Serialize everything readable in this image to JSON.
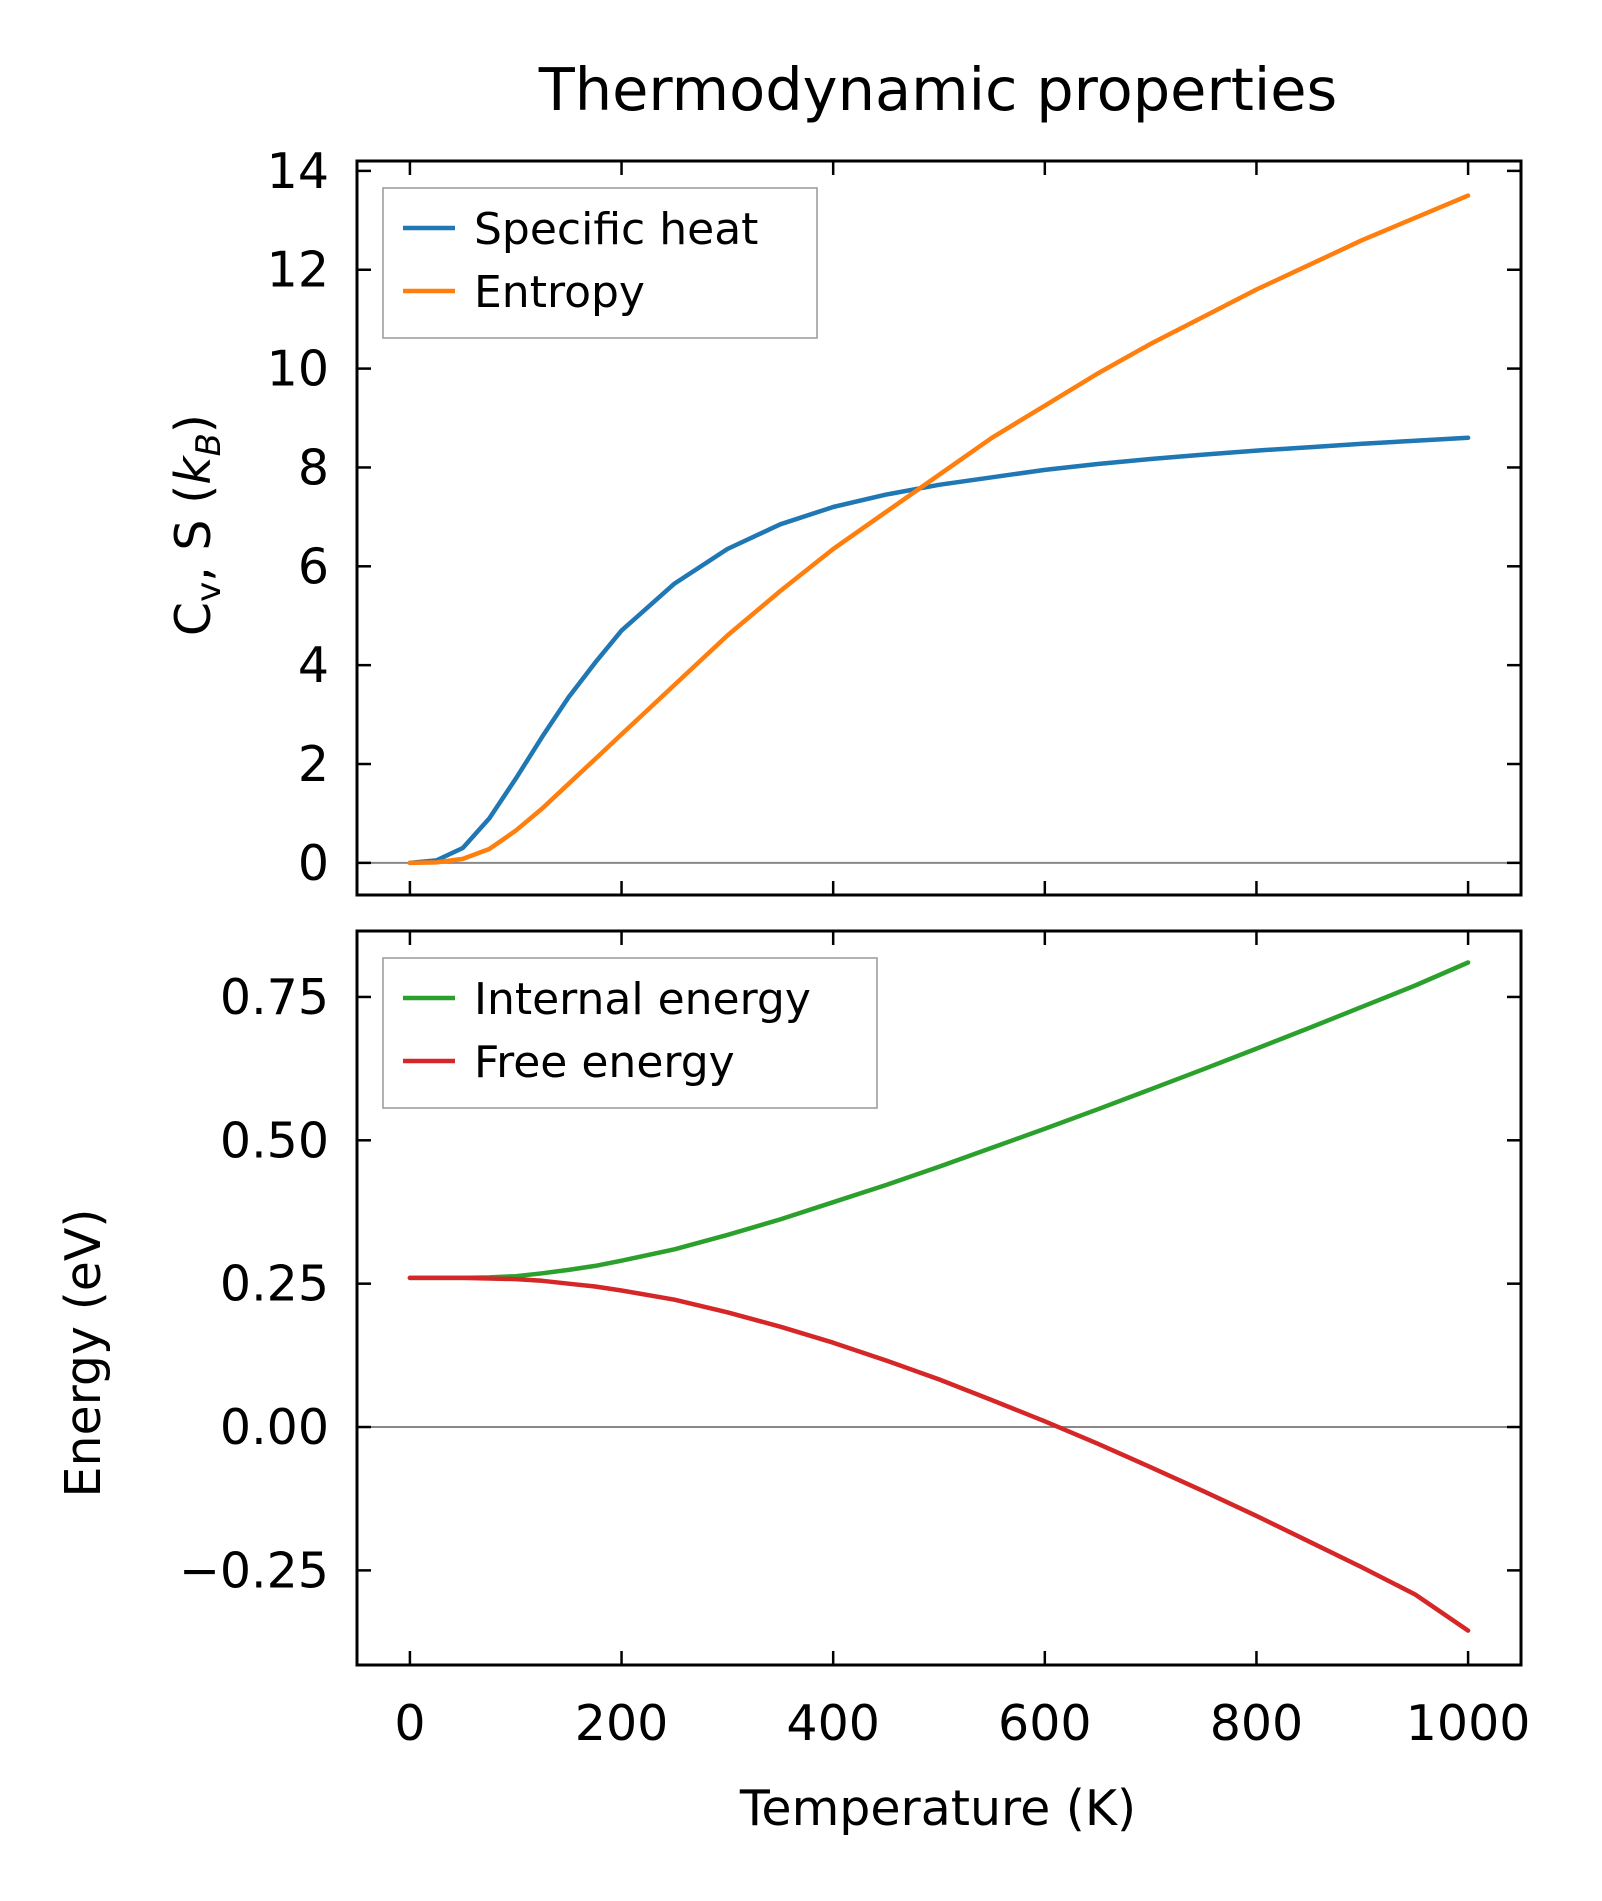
{
  "title": "Thermodynamic properties",
  "chart_data": [
    {
      "type": "line",
      "panel": "top",
      "xlabel": "",
      "ylabel_main": "C",
      "ylabel_sub": "v",
      "ylabel_mid": ", S (",
      "ylabel_k": "k",
      "ylabel_ksub": "B",
      "ylabel_end": ")",
      "xlim": [
        -50,
        1050
      ],
      "ylim": [
        -0.65,
        14.2
      ],
      "yticks": [
        0,
        2,
        4,
        6,
        8,
        10,
        12,
        14
      ],
      "ytick_labels": [
        "0",
        "2",
        "4",
        "6",
        "8",
        "10",
        "12",
        "14"
      ],
      "zero_line": true,
      "legend_position": "top-left",
      "x": [
        0,
        25,
        50,
        75,
        100,
        125,
        150,
        175,
        200,
        250,
        300,
        350,
        400,
        450,
        500,
        550,
        600,
        650,
        700,
        750,
        800,
        850,
        900,
        950,
        1000
      ],
      "series": [
        {
          "name": "Specific heat",
          "color": "#1f77b4",
          "values": [
            0,
            0.05,
            0.3,
            0.9,
            1.7,
            2.55,
            3.35,
            4.05,
            4.7,
            5.65,
            6.35,
            6.85,
            7.2,
            7.45,
            7.65,
            7.8,
            7.95,
            8.07,
            8.17,
            8.26,
            8.34,
            8.41,
            8.48,
            8.54,
            8.6
          ]
        },
        {
          "name": "Entropy",
          "color": "#ff7f0e",
          "values": [
            0,
            0.01,
            0.08,
            0.28,
            0.65,
            1.1,
            1.6,
            2.1,
            2.6,
            3.6,
            4.6,
            5.5,
            6.35,
            7.1,
            7.85,
            8.6,
            9.25,
            9.9,
            10.5,
            11.05,
            11.6,
            12.1,
            12.6,
            13.05,
            13.5
          ]
        }
      ]
    },
    {
      "type": "line",
      "panel": "bottom",
      "xlabel": "Temperature (K)",
      "ylabel": "Energy (eV)",
      "xlim": [
        -50,
        1050
      ],
      "ylim": [
        -0.415,
        0.865
      ],
      "xticks": [
        0,
        200,
        400,
        600,
        800,
        1000
      ],
      "xtick_labels": [
        "0",
        "200",
        "400",
        "600",
        "800",
        "1000"
      ],
      "yticks": [
        -0.25,
        0,
        0.25,
        0.5,
        0.75
      ],
      "ytick_labels": [
        "−0.25",
        "0.00",
        "0.25",
        "0.50",
        "0.75"
      ],
      "zero_line": true,
      "legend_position": "top-left",
      "x": [
        0,
        25,
        50,
        75,
        100,
        125,
        150,
        175,
        200,
        250,
        300,
        350,
        400,
        450,
        500,
        550,
        600,
        650,
        700,
        750,
        800,
        850,
        900,
        950,
        1000
      ],
      "series": [
        {
          "name": "Internal energy",
          "color": "#2ca02c",
          "values": [
            0.26,
            0.26,
            0.26,
            0.261,
            0.263,
            0.268,
            0.274,
            0.281,
            0.29,
            0.31,
            0.335,
            0.362,
            0.392,
            0.422,
            0.454,
            0.487,
            0.52,
            0.554,
            0.589,
            0.624,
            0.66,
            0.696,
            0.733,
            0.77,
            0.81
          ]
        },
        {
          "name": "Free energy",
          "color": "#d62728",
          "values": [
            0.26,
            0.26,
            0.26,
            0.259,
            0.258,
            0.255,
            0.25,
            0.245,
            0.238,
            0.222,
            0.2,
            0.175,
            0.147,
            0.116,
            0.083,
            0.047,
            0.01,
            -0.029,
            -0.07,
            -0.112,
            -0.155,
            -0.2,
            -0.245,
            -0.292,
            -0.355
          ]
        }
      ]
    }
  ]
}
